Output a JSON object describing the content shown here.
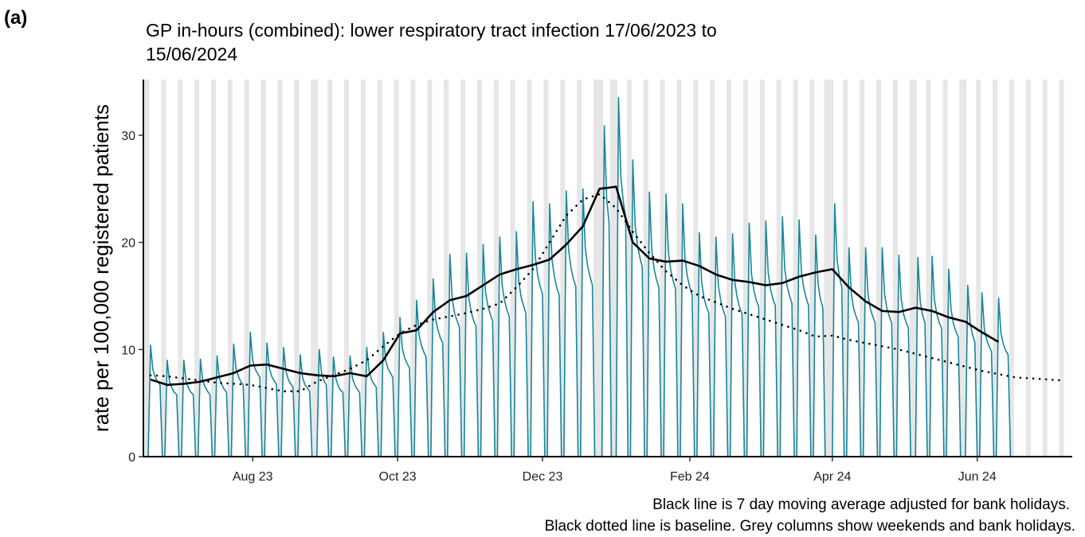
{
  "chart_data": {
    "type": "line",
    "panel_label": "(a)",
    "title": [
      "GP in-hours (combined): lower respiratory tract infection 17/06/2023 to",
      "15/06/2024"
    ],
    "y_label": "rate per 100,000 registered patients",
    "notes": [
      "Black line is 7 day moving average adjusted for bank holidays.",
      "Black dotted line is baseline. Grey columns show weekends and bank holidays."
    ],
    "xlim": [
      "2023-06-16",
      "2024-07-11"
    ],
    "xticks": [
      {
        "value": "2023-08-01",
        "label": "Aug 23"
      },
      {
        "value": "2023-10-01",
        "label": "Oct 23"
      },
      {
        "value": "2023-12-01",
        "label": "Dec 23"
      },
      {
        "value": "2024-02-01",
        "label": "Feb 24"
      },
      {
        "value": "2024-04-01",
        "label": "Apr 24"
      },
      {
        "value": "2024-06-01",
        "label": "Jun 24"
      }
    ],
    "ylim": [
      0,
      35.2
    ],
    "yticks": [
      0,
      10,
      20,
      30
    ],
    "shade_weekends": true,
    "shade_color": "#e6e6e6",
    "bank_holidays": [
      "2023-08-28",
      "2023-12-25",
      "2023-12-26",
      "2024-01-01",
      "2024-03-29",
      "2024-04-01",
      "2024-05-06",
      "2024-05-27"
    ],
    "x": [
      "2023-06-17",
      "2023-06-18",
      "2023-06-19",
      "2023-06-20",
      "2023-06-21",
      "2023-06-22",
      "2023-06-23",
      "2023-06-24",
      "2023-06-25",
      "2023-06-26",
      "2023-06-27",
      "2023-06-28",
      "2023-06-29",
      "2023-06-30",
      "2023-07-01",
      "2023-07-02",
      "2023-07-03",
      "2023-07-04",
      "2023-07-05",
      "2023-07-06",
      "2023-07-07",
      "2023-07-08",
      "2023-07-09",
      "2023-07-10",
      "2023-07-11",
      "2023-07-12",
      "2023-07-13",
      "2023-07-14",
      "2023-07-15",
      "2023-07-16",
      "2023-07-17",
      "2023-07-18",
      "2023-07-19",
      "2023-07-20",
      "2023-07-21",
      "2023-07-22",
      "2023-07-23",
      "2023-07-24",
      "2023-07-25",
      "2023-07-26",
      "2023-07-27",
      "2023-07-28",
      "2023-07-29",
      "2023-07-30",
      "2023-07-31",
      "2023-08-01",
      "2023-08-02",
      "2023-08-03",
      "2023-08-04",
      "2023-08-05",
      "2023-08-06",
      "2023-08-07",
      "2023-08-08",
      "2023-08-09",
      "2023-08-10",
      "2023-08-11",
      "2023-08-12",
      "2023-08-13",
      "2023-08-14",
      "2023-08-15",
      "2023-08-16",
      "2023-08-17",
      "2023-08-18",
      "2023-08-19",
      "2023-08-20",
      "2023-08-21",
      "2023-08-22",
      "2023-08-23",
      "2023-08-24",
      "2023-08-25",
      "2023-08-26",
      "2023-08-27",
      "2023-08-28",
      "2023-08-29",
      "2023-08-30",
      "2023-08-31",
      "2023-09-01",
      "2023-09-02",
      "2023-09-03",
      "2023-09-04",
      "2023-09-05",
      "2023-09-06",
      "2023-09-07",
      "2023-09-08",
      "2023-09-09",
      "2023-09-10",
      "2023-09-11",
      "2023-09-12",
      "2023-09-13",
      "2023-09-14",
      "2023-09-15",
      "2023-09-16",
      "2023-09-17",
      "2023-09-18",
      "2023-09-19",
      "2023-09-20",
      "2023-09-21",
      "2023-09-22",
      "2023-09-23",
      "2023-09-24",
      "2023-09-25",
      "2023-09-26",
      "2023-09-27",
      "2023-09-28",
      "2023-09-29",
      "2023-09-30",
      "2023-10-01",
      "2023-10-02",
      "2023-10-03",
      "2023-10-04",
      "2023-10-05",
      "2023-10-06",
      "2023-10-07",
      "2023-10-08",
      "2023-10-09",
      "2023-10-10",
      "2023-10-11",
      "2023-10-12",
      "2023-10-13",
      "2023-10-14",
      "2023-10-15",
      "2023-10-16",
      "2023-10-17",
      "2023-10-18",
      "2023-10-19",
      "2023-10-20",
      "2023-10-21",
      "2023-10-22",
      "2023-10-23",
      "2023-10-24",
      "2023-10-25",
      "2023-10-26",
      "2023-10-27",
      "2023-10-28",
      "2023-10-29",
      "2023-10-30",
      "2023-10-31",
      "2023-11-01",
      "2023-11-02",
      "2023-11-03",
      "2023-11-04",
      "2023-11-05",
      "2023-11-06",
      "2023-11-07",
      "2023-11-08",
      "2023-11-09",
      "2023-11-10",
      "2023-11-11",
      "2023-11-12",
      "2023-11-13",
      "2023-11-14",
      "2023-11-15",
      "2023-11-16",
      "2023-11-17",
      "2023-11-18",
      "2023-11-19",
      "2023-11-20",
      "2023-11-21",
      "2023-11-22",
      "2023-11-23",
      "2023-11-24",
      "2023-11-25",
      "2023-11-26",
      "2023-11-27",
      "2023-11-28",
      "2023-11-29",
      "2023-11-30",
      "2023-12-01",
      "2023-12-02",
      "2023-12-03",
      "2023-12-04",
      "2023-12-05",
      "2023-12-06",
      "2023-12-07",
      "2023-12-08",
      "2023-12-09",
      "2023-12-10",
      "2023-12-11",
      "2023-12-12",
      "2023-12-13",
      "2023-12-14",
      "2023-12-15",
      "2023-12-16",
      "2023-12-17",
      "2023-12-18",
      "2023-12-19",
      "2023-12-20",
      "2023-12-21",
      "2023-12-22",
      "2023-12-23",
      "2023-12-24",
      "2023-12-25",
      "2023-12-26",
      "2023-12-27",
      "2023-12-28",
      "2023-12-29",
      "2023-12-30",
      "2023-12-31",
      "2024-01-01",
      "2024-01-02",
      "2024-01-03",
      "2024-01-04",
      "2024-01-05",
      "2024-01-06",
      "2024-01-07",
      "2024-01-08",
      "2024-01-09",
      "2024-01-10",
      "2024-01-11",
      "2024-01-12",
      "2024-01-13",
      "2024-01-14",
      "2024-01-15",
      "2024-01-16",
      "2024-01-17",
      "2024-01-18",
      "2024-01-19",
      "2024-01-20",
      "2024-01-21",
      "2024-01-22",
      "2024-01-23",
      "2024-01-24",
      "2024-01-25",
      "2024-01-26",
      "2024-01-27",
      "2024-01-28",
      "2024-01-29",
      "2024-01-30",
      "2024-01-31",
      "2024-02-01",
      "2024-02-02",
      "2024-02-03",
      "2024-02-04",
      "2024-02-05",
      "2024-02-06",
      "2024-02-07",
      "2024-02-08",
      "2024-02-09",
      "2024-02-10",
      "2024-02-11",
      "2024-02-12",
      "2024-02-13",
      "2024-02-14",
      "2024-02-15",
      "2024-02-16",
      "2024-02-17",
      "2024-02-18",
      "2024-02-19",
      "2024-02-20",
      "2024-02-21",
      "2024-02-22",
      "2024-02-23",
      "2024-02-24",
      "2024-02-25",
      "2024-02-26",
      "2024-02-27",
      "2024-02-28",
      "2024-02-29",
      "2024-03-01",
      "2024-03-02",
      "2024-03-03",
      "2024-03-04",
      "2024-03-05",
      "2024-03-06",
      "2024-03-07",
      "2024-03-08",
      "2024-03-09",
      "2024-03-10",
      "2024-03-11",
      "2024-03-12",
      "2024-03-13",
      "2024-03-14",
      "2024-03-15",
      "2024-03-16",
      "2024-03-17",
      "2024-03-18",
      "2024-03-19",
      "2024-03-20",
      "2024-03-21",
      "2024-03-22",
      "2024-03-23",
      "2024-03-24",
      "2024-03-25",
      "2024-03-26",
      "2024-03-27",
      "2024-03-28",
      "2024-03-29",
      "2024-03-30",
      "2024-03-31",
      "2024-04-01",
      "2024-04-02",
      "2024-04-03",
      "2024-04-04",
      "2024-04-05",
      "2024-04-06",
      "2024-04-07",
      "2024-04-08",
      "2024-04-09",
      "2024-04-10",
      "2024-04-11",
      "2024-04-12",
      "2024-04-13",
      "2024-04-14",
      "2024-04-15",
      "2024-04-16",
      "2024-04-17",
      "2024-04-18",
      "2024-04-19",
      "2024-04-20",
      "2024-04-21",
      "2024-04-22",
      "2024-04-23",
      "2024-04-24",
      "2024-04-25",
      "2024-04-26",
      "2024-04-27",
      "2024-04-28",
      "2024-04-29",
      "2024-04-30",
      "2024-05-01",
      "2024-05-02",
      "2024-05-03",
      "2024-05-04",
      "2024-05-05",
      "2024-05-06",
      "2024-05-07",
      "2024-05-08",
      "2024-05-09",
      "2024-05-10",
      "2024-05-11",
      "2024-05-12",
      "2024-05-13",
      "2024-05-14",
      "2024-05-15",
      "2024-05-16",
      "2024-05-17",
      "2024-05-18",
      "2024-05-19",
      "2024-05-20",
      "2024-05-21",
      "2024-05-22",
      "2024-05-23",
      "2024-05-24",
      "2024-05-25",
      "2024-05-26",
      "2024-05-27",
      "2024-05-28",
      "2024-05-29",
      "2024-05-30",
      "2024-05-31",
      "2024-06-01",
      "2024-06-02",
      "2024-06-03",
      "2024-06-04",
      "2024-06-05",
      "2024-06-06",
      "2024-06-07",
      "2024-06-08",
      "2024-06-09",
      "2024-06-10",
      "2024-06-11",
      "2024-06-12",
      "2024-06-13",
      "2024-06-14",
      "2024-06-15"
    ],
    "series": [
      {
        "color": "#17869b",
        "style": "solid",
        "values": [
          0,
          0,
          10.4,
          8.1,
          7.4,
          7.0,
          6.7,
          0,
          0,
          9.0,
          7.0,
          6.4,
          6.0,
          5.8,
          0,
          0,
          9.0,
          7.0,
          6.4,
          6.0,
          5.8,
          0,
          0,
          9.1,
          7.1,
          6.5,
          6.1,
          5.8,
          0,
          0,
          9.4,
          7.3,
          6.7,
          6.3,
          6.0,
          0,
          0,
          10.5,
          8.2,
          7.5,
          7.0,
          6.7,
          0,
          0,
          11.6,
          9.0,
          8.2,
          7.8,
          7.4,
          0,
          0,
          10.6,
          8.3,
          7.5,
          7.1,
          6.8,
          0,
          0,
          10.2,
          8.0,
          7.2,
          6.8,
          6.5,
          0,
          0,
          9.5,
          7.4,
          6.7,
          6.4,
          6.1,
          0,
          0,
          0,
          10.0,
          7.8,
          7.1,
          6.7,
          0,
          0,
          9.3,
          7.3,
          6.6,
          6.2,
          6.0,
          0,
          0,
          9.4,
          7.3,
          6.7,
          6.3,
          6.0,
          0,
          0,
          10.2,
          8.0,
          7.2,
          6.8,
          6.5,
          0,
          0,
          11.6,
          9.0,
          8.2,
          7.8,
          7.4,
          0,
          0,
          13.0,
          10.1,
          9.2,
          8.7,
          8.3,
          0,
          0,
          14.6,
          11.4,
          10.4,
          9.8,
          9.3,
          0,
          0,
          16.6,
          12.9,
          11.8,
          11.1,
          10.6,
          0,
          0,
          18.9,
          14.7,
          13.4,
          12.7,
          12.1,
          0,
          0,
          19.0,
          14.8,
          13.5,
          12.7,
          12.2,
          0,
          0,
          19.8,
          15.4,
          14.1,
          13.3,
          12.7,
          0,
          0,
          20.5,
          16.0,
          14.6,
          13.7,
          13.1,
          0,
          0,
          21.0,
          16.4,
          14.9,
          14.1,
          13.4,
          0,
          0,
          23.8,
          18.6,
          16.9,
          15.9,
          15.2,
          0,
          0,
          23.6,
          18.4,
          16.8,
          15.8,
          15.1,
          0,
          0,
          24.8,
          19.3,
          17.6,
          16.6,
          15.9,
          0,
          0,
          25.0,
          19.5,
          17.8,
          16.8,
          16.0,
          0,
          0,
          0,
          0,
          30.9,
          24.1,
          21.9,
          0,
          0,
          0,
          33.5,
          26.1,
          23.8,
          22.4,
          0,
          0,
          27.7,
          21.6,
          19.7,
          18.6,
          17.7,
          0,
          0,
          24.7,
          19.3,
          17.5,
          16.5,
          15.8,
          0,
          0,
          24.5,
          19.1,
          17.4,
          16.4,
          15.7,
          0,
          0,
          23.6,
          18.4,
          16.8,
          15.8,
          15.1,
          0,
          0,
          20.9,
          16.3,
          14.8,
          14.0,
          13.4,
          0,
          0,
          20.5,
          16.0,
          14.6,
          13.7,
          13.1,
          0,
          0,
          20.8,
          16.2,
          14.8,
          13.9,
          13.3,
          0,
          0,
          21.8,
          17.0,
          15.5,
          14.6,
          14.0,
          0,
          0,
          22.0,
          17.2,
          15.6,
          14.7,
          14.1,
          0,
          0,
          22.4,
          17.5,
          15.9,
          15.0,
          14.3,
          0,
          0,
          22.1,
          17.2,
          15.7,
          14.8,
          14.1,
          0,
          0,
          20.7,
          16.1,
          14.7,
          13.9,
          0,
          0,
          0,
          0,
          23.6,
          18.4,
          16.8,
          15.8,
          0,
          0,
          19.5,
          15.2,
          13.8,
          13.1,
          12.5,
          0,
          0,
          19.5,
          15.2,
          13.8,
          13.1,
          12.5,
          0,
          0,
          19.5,
          15.2,
          13.8,
          13.1,
          12.5,
          0,
          0,
          18.8,
          14.7,
          13.3,
          12.6,
          12.0,
          0,
          0,
          0,
          18.6,
          14.5,
          13.2,
          12.5,
          0,
          0,
          18.7,
          14.6,
          13.3,
          12.5,
          12.0,
          0,
          0,
          17.5,
          13.7,
          12.4,
          11.7,
          11.2,
          0,
          0,
          0,
          16.0,
          12.5,
          11.4,
          10.7,
          0,
          0,
          15.3,
          11.9,
          10.9,
          10.3,
          9.8,
          0,
          0,
          14.8,
          11.5,
          10.5,
          9.9,
          9.5,
          0
        ]
      },
      {
        "color": "#000000",
        "style": "solid",
        "x": [
          "2023-06-19",
          "2023-06-26",
          "2023-07-03",
          "2023-07-10",
          "2023-07-17",
          "2023-07-24",
          "2023-07-31",
          "2023-08-07",
          "2023-08-14",
          "2023-08-21",
          "2023-08-28",
          "2023-09-04",
          "2023-09-11",
          "2023-09-18",
          "2023-09-25",
          "2023-10-02",
          "2023-10-09",
          "2023-10-16",
          "2023-10-23",
          "2023-10-30",
          "2023-11-06",
          "2023-11-13",
          "2023-11-20",
          "2023-11-27",
          "2023-12-04",
          "2023-12-11",
          "2023-12-18",
          "2023-12-25",
          "2024-01-01",
          "2024-01-08",
          "2024-01-15",
          "2024-01-22",
          "2024-01-29",
          "2024-02-05",
          "2024-02-12",
          "2024-02-19",
          "2024-02-26",
          "2024-03-04",
          "2024-03-11",
          "2024-03-18",
          "2024-03-25",
          "2024-04-01",
          "2024-04-08",
          "2024-04-15",
          "2024-04-22",
          "2024-04-29",
          "2024-05-06",
          "2024-05-13",
          "2024-05-20",
          "2024-05-27",
          "2024-06-03",
          "2024-06-10"
        ],
        "values": [
          7.2,
          6.7,
          6.8,
          7.0,
          7.4,
          7.8,
          8.5,
          8.6,
          8.2,
          7.8,
          7.6,
          7.5,
          7.8,
          7.5,
          9.0,
          11.5,
          11.8,
          13.5,
          14.6,
          15.0,
          16.0,
          17.0,
          17.5,
          17.9,
          18.4,
          19.8,
          21.5,
          25.0,
          25.2,
          20.0,
          18.5,
          18.2,
          18.3,
          17.8,
          17.0,
          16.5,
          16.3,
          16.0,
          16.2,
          16.8,
          17.2,
          17.5,
          15.8,
          14.5,
          13.6,
          13.5,
          13.9,
          13.6,
          13.0,
          12.6,
          11.6,
          10.7
        ]
      },
      {
        "color": "#000000",
        "style": "dotted",
        "x": [
          "2023-06-19",
          "2023-06-26",
          "2023-07-03",
          "2023-07-10",
          "2023-07-17",
          "2023-07-24",
          "2023-07-31",
          "2023-08-07",
          "2023-08-14",
          "2023-08-21",
          "2023-08-28",
          "2023-09-04",
          "2023-09-11",
          "2023-09-18",
          "2023-09-25",
          "2023-10-02",
          "2023-10-09",
          "2023-10-16",
          "2023-10-23",
          "2023-10-30",
          "2023-11-06",
          "2023-11-13",
          "2023-11-20",
          "2023-11-27",
          "2023-12-04",
          "2023-12-11",
          "2023-12-18",
          "2023-12-25",
          "2024-01-01",
          "2024-01-08",
          "2024-01-15",
          "2024-01-22",
          "2024-01-29",
          "2024-02-05",
          "2024-02-12",
          "2024-02-19",
          "2024-02-26",
          "2024-03-04",
          "2024-03-11",
          "2024-03-18",
          "2024-03-25",
          "2024-04-01",
          "2024-04-08",
          "2024-04-15",
          "2024-04-22",
          "2024-04-29",
          "2024-05-06",
          "2024-05-13",
          "2024-05-20",
          "2024-05-27",
          "2024-06-03",
          "2024-06-10",
          "2024-06-17",
          "2024-06-24",
          "2024-07-01",
          "2024-07-08"
        ],
        "values": [
          7.6,
          7.5,
          7.3,
          7.1,
          6.9,
          6.8,
          6.7,
          6.4,
          6.1,
          6.1,
          7.0,
          7.6,
          8.2,
          9.0,
          10.3,
          11.5,
          12.3,
          12.8,
          13.1,
          13.4,
          13.8,
          14.3,
          15.8,
          17.5,
          20.0,
          22.5,
          24.0,
          24.5,
          23.2,
          21.0,
          19.0,
          17.3,
          16.0,
          15.0,
          14.4,
          13.8,
          13.3,
          12.8,
          12.3,
          11.8,
          11.2,
          11.3,
          10.9,
          10.6,
          10.3,
          10.0,
          9.6,
          9.2,
          8.8,
          8.4,
          8.0,
          7.7,
          7.4,
          7.3,
          7.2,
          7.1
        ]
      }
    ]
  }
}
